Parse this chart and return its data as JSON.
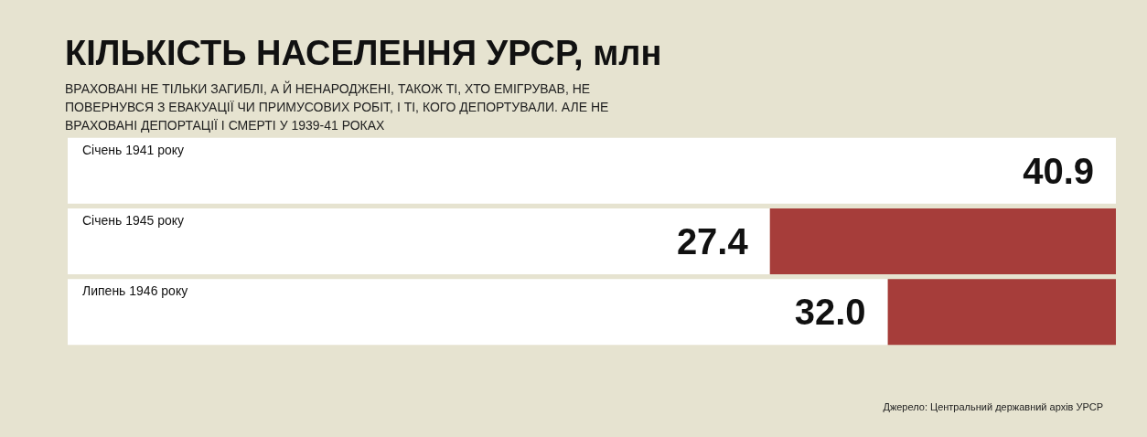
{
  "chart_data": {
    "type": "bar",
    "orientation": "horizontal",
    "stacked": true,
    "title": "КІЛЬКІСТЬ НАСЕЛЕННЯ УРСР, млн",
    "subtitle": "ВРАХОВАНІ НЕ ТІЛЬКИ ЗАГИБЛІ, А Й НЕНАРОДЖЕНІ, ТАКОЖ ТІ, ХТО ЕМІГРУВАВ, НЕ ПОВЕРНУВСЯ З ЕВАКУАЦІЇ ЧИ ПРИМУСОВИХ РОБІТ, І ТІ, КОГО ДЕПОРТУВАЛИ. АЛЕ НЕ ВРАХОВАНІ ДЕПОРТАЦІЇ І СМЕРТІ У 1939-41 РОКАХ",
    "categories": [
      "Січень 1941 року",
      "Січень 1945 року",
      "Липень 1946 року"
    ],
    "series": [
      {
        "color": "#ffffff",
        "values": [
          40.9,
          27.4,
          32.0
        ],
        "value_labels": [
          "40.9",
          "27.4",
          "32.0"
        ]
      },
      {
        "color": "#a63d3a",
        "values": [
          null,
          13.5,
          8.9
        ]
      }
    ],
    "xlim": [
      0,
      40.9
    ],
    "tick_labels": "y",
    "annotations": [
      "Джерело: Центральний державний архів УРСР"
    ]
  }
}
